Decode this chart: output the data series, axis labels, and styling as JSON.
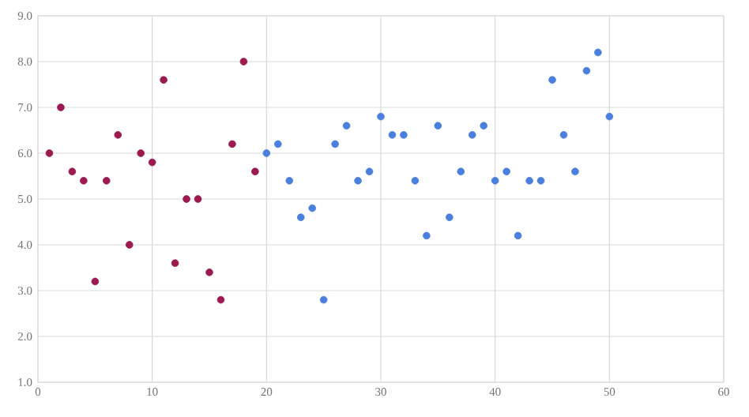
{
  "chart_data": {
    "type": "scatter",
    "xlim": [
      0,
      60
    ],
    "ylim": [
      1.0,
      9.0
    ],
    "xticks": [
      0,
      10,
      20,
      30,
      40,
      50,
      60
    ],
    "yticks": [
      {
        "value": 1,
        "label": "1.0"
      },
      {
        "value": 2,
        "label": "2.0"
      },
      {
        "value": 3,
        "label": "3.0"
      },
      {
        "value": 4,
        "label": "4.0"
      },
      {
        "value": 5,
        "label": "5.0"
      },
      {
        "value": 6,
        "label": "6.0"
      },
      {
        "value": 7,
        "label": "7.0"
      },
      {
        "value": 8,
        "label": "8.0"
      },
      {
        "value": 9,
        "label": "9.0"
      }
    ],
    "grid": true,
    "marker": "circle",
    "series": [
      {
        "color": "#9c1a4f",
        "x": [
          1,
          2,
          3,
          4,
          5,
          6,
          7,
          8,
          9,
          10,
          11,
          12,
          13,
          14,
          15,
          16,
          17,
          18,
          19
        ],
        "values": [
          6.0,
          7.0,
          5.6,
          5.4,
          3.2,
          5.4,
          6.4,
          4.0,
          6.0,
          5.8,
          7.6,
          3.6,
          5.0,
          5.0,
          3.4,
          2.8,
          6.2,
          8.0,
          5.6
        ]
      },
      {
        "color": "#4a7fde",
        "x": [
          20,
          21,
          22,
          23,
          24,
          25,
          26,
          27,
          28,
          29,
          30,
          31,
          32,
          33,
          34,
          35,
          36,
          37,
          38,
          39,
          40,
          41,
          42,
          43,
          44,
          45,
          46,
          47,
          48,
          49,
          50
        ],
        "values": [
          6.0,
          6.2,
          5.4,
          4.6,
          4.8,
          2.8,
          6.2,
          6.6,
          5.4,
          5.6,
          6.8,
          6.4,
          6.4,
          5.4,
          4.2,
          6.6,
          4.6,
          5.6,
          6.4,
          6.6,
          5.4,
          5.6,
          4.2,
          5.4,
          5.4,
          7.6,
          6.4,
          5.6,
          7.8,
          8.2,
          6.8
        ]
      }
    ]
  }
}
